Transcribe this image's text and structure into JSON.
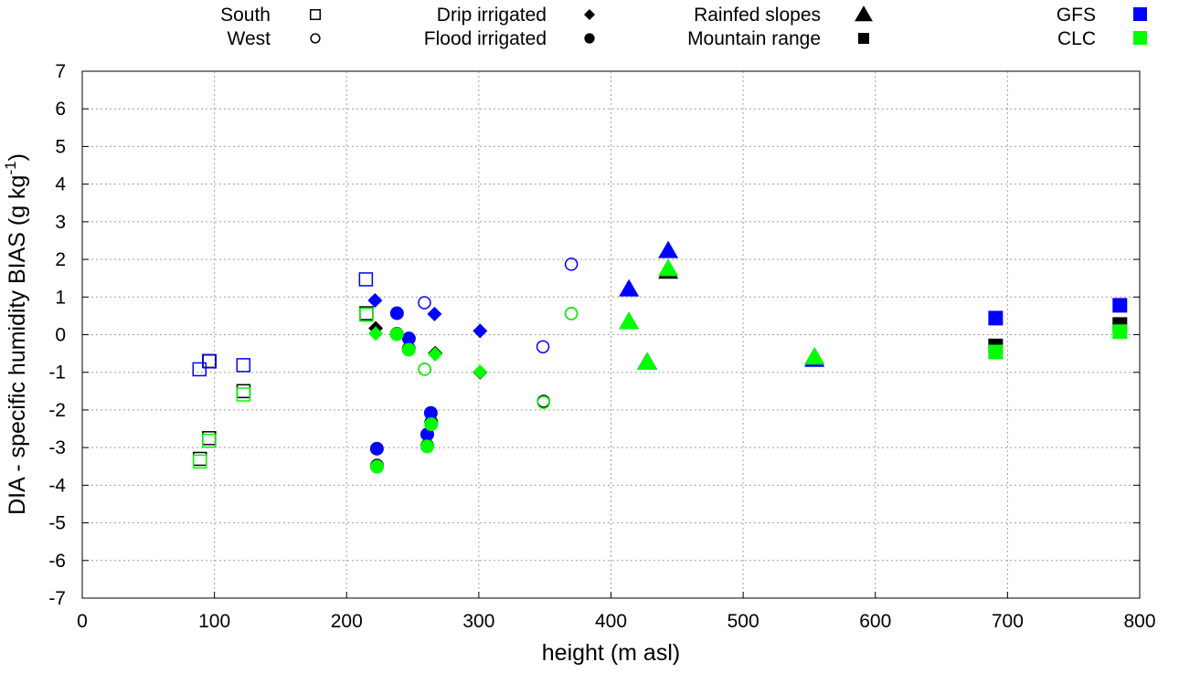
{
  "chart_data": {
    "type": "scatter",
    "xlabel": "height (m asl)",
    "ylabel": {
      "main": "DIA - specific humidity BIAS (g kg",
      "sup": "-1",
      "close": ")"
    },
    "xlim": [
      0,
      800
    ],
    "ylim": [
      -7,
      7
    ],
    "xticks": [
      "0",
      "100",
      "200",
      "300",
      "400",
      "500",
      "600",
      "700",
      "800"
    ],
    "yticks": [
      "-7",
      "-6",
      "-5",
      "-4",
      "-3",
      "-2",
      "-1",
      "0",
      "1",
      "2",
      "3",
      "4",
      "5",
      "6",
      "7"
    ],
    "grid": true,
    "legend_placement": "top",
    "marker_legend": [
      {
        "key": "south",
        "label": "South"
      },
      {
        "key": "west",
        "label": "West"
      },
      {
        "key": "drip",
        "label": "Drip irrigated"
      },
      {
        "key": "flood",
        "label": "Flood irrigated"
      },
      {
        "key": "rainfed",
        "label": "Rainfed slopes"
      },
      {
        "key": "mountain",
        "label": "Mountain range"
      }
    ],
    "series": [
      {
        "name": null,
        "color": "#000000",
        "points": [
          [
            96,
            -0.7,
            "south"
          ],
          [
            122,
            -1.5,
            "south"
          ],
          [
            96,
            -2.75,
            "south"
          ],
          [
            89,
            -3.3,
            "south"
          ],
          [
            215,
            0.57,
            "south"
          ],
          [
            222,
            0.17,
            "drip"
          ],
          [
            267,
            -0.49,
            "drip"
          ],
          [
            301,
            -1.0,
            "drip"
          ],
          [
            238,
            0.02,
            "flood"
          ],
          [
            247,
            -0.37,
            "flood"
          ],
          [
            264,
            -2.33,
            "flood"
          ],
          [
            261,
            -2.95,
            "flood"
          ],
          [
            223,
            -3.48,
            "flood"
          ],
          [
            259,
            -0.92,
            "west"
          ],
          [
            349,
            -1.77,
            "west"
          ],
          [
            370,
            0.56,
            "west"
          ],
          [
            413.6,
            0.34,
            "rainfed"
          ],
          [
            443.3,
            1.68,
            "rainfed"
          ],
          [
            427.4,
            -0.73,
            "rainfed"
          ],
          [
            554,
            -0.6,
            "rainfed"
          ],
          [
            691,
            -0.3,
            "mountain"
          ],
          [
            785,
            0.27,
            "mountain"
          ]
        ]
      },
      {
        "name": "GFS",
        "color": "#0000ff",
        "points": [
          [
            88.7,
            -0.92,
            "south"
          ],
          [
            96.3,
            -0.71,
            "south"
          ],
          [
            121.9,
            -0.81,
            "south"
          ],
          [
            214.6,
            1.47,
            "south"
          ],
          [
            221.5,
            0.91,
            "drip"
          ],
          [
            266.5,
            0.55,
            "drip"
          ],
          [
            301,
            0.1,
            "drip"
          ],
          [
            238.1,
            0.57,
            "flood"
          ],
          [
            247.1,
            -0.1,
            "flood"
          ],
          [
            263.7,
            -2.08,
            "flood"
          ],
          [
            261,
            -2.65,
            "flood"
          ],
          [
            222.9,
            -3.03,
            "flood"
          ],
          [
            258.9,
            0.85,
            "west"
          ],
          [
            348.5,
            -0.32,
            "west"
          ],
          [
            370,
            1.87,
            "west"
          ],
          [
            413.6,
            1.21,
            "rainfed"
          ],
          [
            443.3,
            2.23,
            "rainfed"
          ],
          [
            427.4,
            -0.73,
            "rainfed"
          ],
          [
            554,
            -0.66,
            "rainfed"
          ],
          [
            691,
            0.44,
            "mountain"
          ],
          [
            785,
            0.78,
            "mountain"
          ]
        ]
      },
      {
        "name": "CLC",
        "color": "#00ff00",
        "points": [
          [
            122,
            -1.59,
            "south"
          ],
          [
            96,
            -2.82,
            "south"
          ],
          [
            89,
            -3.37,
            "south"
          ],
          [
            215,
            0.53,
            "south"
          ],
          [
            222,
            0.03,
            "drip"
          ],
          [
            267,
            -0.52,
            "drip"
          ],
          [
            301,
            -0.99,
            "drip"
          ],
          [
            238,
            0.01,
            "flood"
          ],
          [
            247,
            -0.4,
            "flood"
          ],
          [
            264,
            -2.38,
            "flood"
          ],
          [
            261,
            -2.97,
            "flood"
          ],
          [
            223,
            -3.51,
            "flood"
          ],
          [
            259,
            -0.92,
            "west"
          ],
          [
            349,
            -1.8,
            "west"
          ],
          [
            370,
            0.56,
            "west"
          ],
          [
            413.6,
            0.34,
            "rainfed"
          ],
          [
            443.3,
            1.75,
            "rainfed"
          ],
          [
            427.4,
            -0.73,
            "rainfed"
          ],
          [
            554,
            -0.6,
            "rainfed"
          ],
          [
            691,
            -0.46,
            "mountain"
          ],
          [
            785,
            0.08,
            "mountain"
          ]
        ]
      }
    ]
  }
}
